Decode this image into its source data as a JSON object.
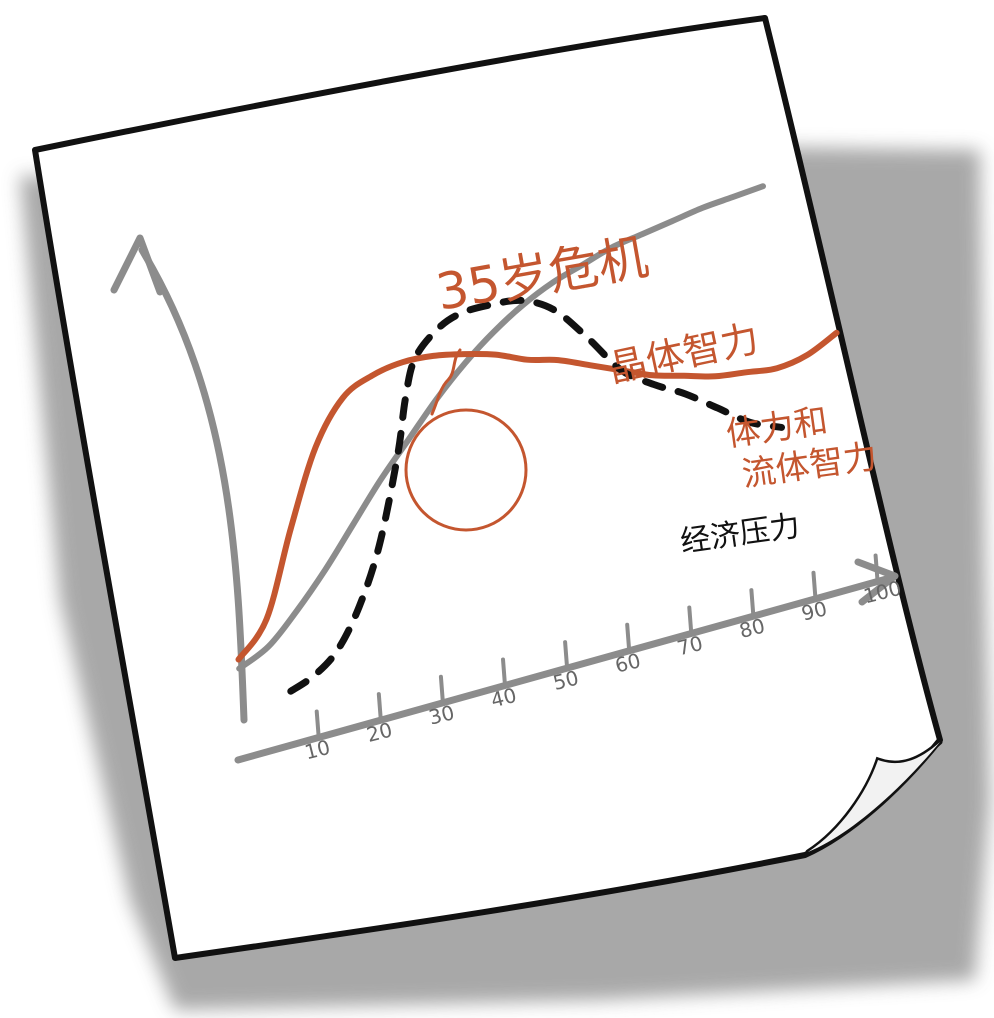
{
  "chart_data": {
    "type": "line",
    "annotation": "35岁危机",
    "x_ticks": [
      "10",
      "20",
      "30",
      "40",
      "50",
      "60",
      "70",
      "80",
      "90",
      "100"
    ],
    "xlim": [
      0,
      100
    ],
    "series": [
      {
        "name": "晶体智力",
        "style": "solid",
        "color": "#8c8c8c",
        "x": [
          0,
          5,
          10,
          15,
          20,
          25,
          30,
          35,
          40,
          45,
          50,
          55,
          60,
          65,
          70,
          75,
          80,
          85,
          90
        ],
        "y": [
          8,
          11,
          17,
          24,
          32,
          40,
          47,
          54,
          60,
          65,
          69,
          72,
          74,
          76,
          77,
          78,
          79,
          79.5,
          80
        ]
      },
      {
        "name": "体力和流体智力",
        "style": "solid",
        "color": "#c4562f",
        "x": [
          0,
          5,
          10,
          15,
          20,
          25,
          30,
          35,
          40,
          45,
          50,
          55,
          60,
          65,
          70,
          75,
          80,
          85,
          90,
          95,
          100
        ],
        "y": [
          10,
          17,
          35,
          51,
          60,
          63,
          64,
          63.5,
          62,
          60,
          57,
          55,
          52,
          49,
          46,
          44,
          42,
          41,
          40,
          41,
          44
        ]
      },
      {
        "name": "经济压力",
        "style": "dashed",
        "color": "#111111",
        "x": [
          8,
          12,
          16,
          20,
          24,
          28,
          30,
          32,
          36,
          40,
          45,
          50,
          55,
          60,
          65,
          70,
          75,
          80,
          85,
          90
        ],
        "y": [
          0,
          2,
          6,
          14,
          26,
          44,
          56,
          64,
          69,
          71,
          71,
          70,
          66,
          58,
          49,
          44,
          40,
          35,
          30,
          27
        ]
      }
    ],
    "grid": false,
    "legend": "none"
  }
}
